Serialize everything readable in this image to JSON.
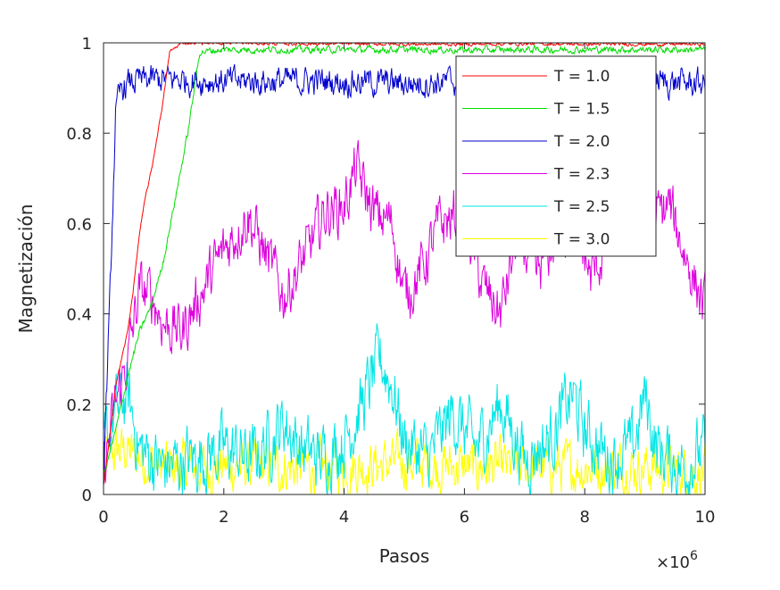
{
  "chart_data": {
    "type": "line",
    "title": "",
    "xlabel": "Pasos",
    "ylabel": "Magnetización",
    "x_multiplier_label": {
      "times": "×10",
      "exponent": "6"
    },
    "xlim": [
      0,
      10
    ],
    "ylim": [
      0,
      1
    ],
    "xticks": [
      "0",
      "2",
      "4",
      "6",
      "8",
      "10"
    ],
    "yticks": [
      "0",
      "0.2",
      "0.4",
      "0.6",
      "0.8",
      "1"
    ],
    "legend_position": "top-right",
    "grid": false,
    "series": [
      {
        "name": "T = 1.0",
        "color": "#ff0000",
        "x": [
          0,
          0.1,
          0.2,
          0.3,
          0.4,
          0.5,
          0.6,
          0.7,
          0.8,
          0.9,
          1.0,
          1.1,
          1.3,
          1.6,
          2,
          3,
          4,
          5,
          6,
          7,
          8,
          9,
          10
        ],
        "y": [
          0.02,
          0.12,
          0.24,
          0.3,
          0.36,
          0.46,
          0.58,
          0.66,
          0.72,
          0.8,
          0.88,
          0.98,
          1.0,
          1.0,
          1.0,
          0.998,
          0.998,
          0.997,
          0.997,
          0.998,
          0.997,
          0.997,
          0.997
        ],
        "noise": 0.003
      },
      {
        "name": "T = 1.5",
        "color": "#00dd00",
        "x": [
          0,
          0.2,
          0.4,
          0.6,
          0.8,
          1.0,
          1.2,
          1.4,
          1.6,
          2,
          3,
          4,
          5,
          6,
          7,
          8,
          9,
          10
        ],
        "y": [
          0.04,
          0.14,
          0.26,
          0.36,
          0.42,
          0.52,
          0.66,
          0.8,
          0.98,
          0.985,
          0.985,
          0.985,
          0.985,
          0.984,
          0.985,
          0.985,
          0.985,
          0.985
        ],
        "noise": 0.006
      },
      {
        "name": "T = 2.0",
        "color": "#0000cc",
        "x": [
          0,
          0.1,
          0.2,
          0.3,
          0.5,
          1,
          2,
          3,
          4,
          5,
          6,
          7,
          8,
          9,
          10
        ],
        "y": [
          0.05,
          0.4,
          0.84,
          0.9,
          0.915,
          0.92,
          0.915,
          0.915,
          0.915,
          0.91,
          0.915,
          0.915,
          0.915,
          0.915,
          0.91
        ],
        "noise": 0.025
      },
      {
        "name": "T = 2.3",
        "color": "#dd00dd",
        "x": [
          0,
          0.2,
          0.4,
          0.6,
          0.8,
          1.0,
          1.3,
          1.6,
          2.0,
          2.4,
          2.8,
          3.0,
          3.4,
          3.7,
          4.0,
          4.2,
          4.5,
          4.8,
          5.0,
          5.3,
          5.6,
          6.0,
          6.3,
          6.6,
          6.9,
          7.2,
          7.5,
          7.8,
          8.1,
          8.4,
          8.8,
          9.1,
          9.4,
          9.7,
          10
        ],
        "y": [
          0.05,
          0.2,
          0.3,
          0.45,
          0.44,
          0.38,
          0.36,
          0.44,
          0.54,
          0.62,
          0.5,
          0.44,
          0.54,
          0.63,
          0.64,
          0.72,
          0.62,
          0.6,
          0.44,
          0.5,
          0.6,
          0.62,
          0.46,
          0.4,
          0.58,
          0.48,
          0.56,
          0.62,
          0.48,
          0.56,
          0.62,
          0.6,
          0.64,
          0.52,
          0.41
        ],
        "noise": 0.05
      },
      {
        "name": "T = 2.5",
        "color": "#00e5e5",
        "x": [
          0,
          0.2,
          0.4,
          0.6,
          1.0,
          1.5,
          2.0,
          2.5,
          3.0,
          3.3,
          3.6,
          4.0,
          4.3,
          4.6,
          4.8,
          5.0,
          5.4,
          5.8,
          6.2,
          6.6,
          6.8,
          7.0,
          7.4,
          7.8,
          8.0,
          8.4,
          8.8,
          9.0,
          9.2,
          9.6,
          10
        ],
        "y": [
          0.1,
          0.18,
          0.22,
          0.1,
          0.06,
          0.08,
          0.1,
          0.08,
          0.16,
          0.1,
          0.08,
          0.12,
          0.2,
          0.3,
          0.24,
          0.12,
          0.08,
          0.18,
          0.1,
          0.2,
          0.14,
          0.08,
          0.12,
          0.22,
          0.14,
          0.08,
          0.1,
          0.22,
          0.1,
          0.06,
          0.1
        ],
        "noise": 0.06
      },
      {
        "name": "T = 3.0",
        "color": "#ffff00",
        "x": [
          0,
          0.3,
          1,
          2,
          3,
          4,
          5,
          6,
          7,
          8,
          9,
          10
        ],
        "y": [
          0.08,
          0.1,
          0.06,
          0.06,
          0.06,
          0.06,
          0.07,
          0.06,
          0.06,
          0.06,
          0.06,
          0.05
        ],
        "noise": 0.045
      }
    ]
  }
}
